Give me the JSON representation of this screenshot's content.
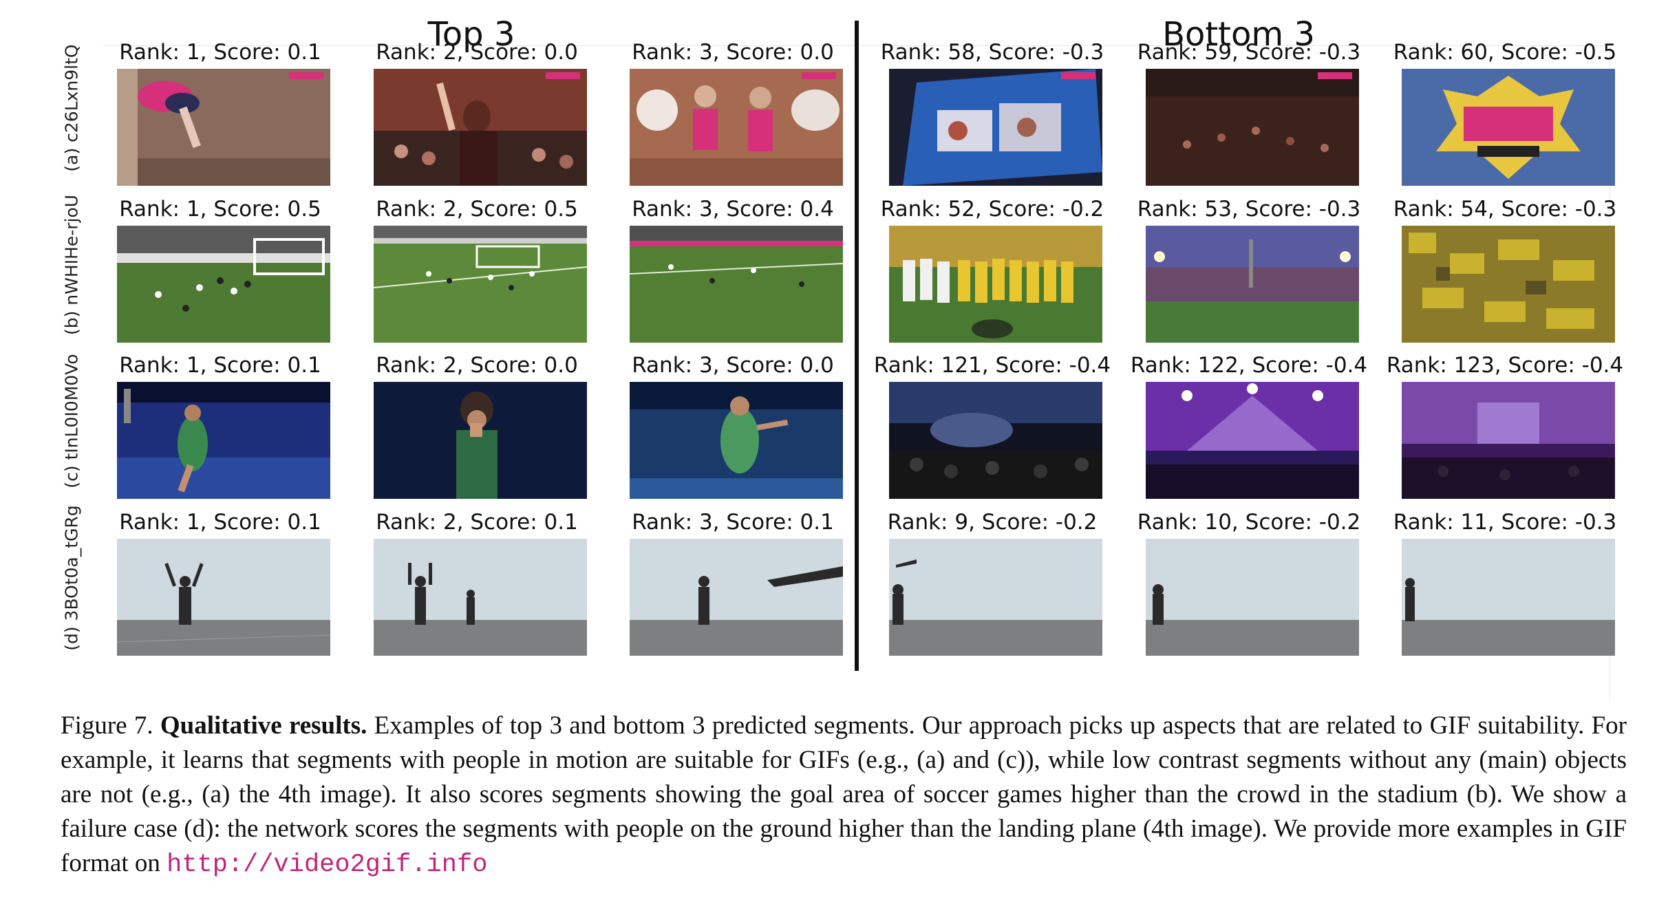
{
  "headers": {
    "top": "Top 3",
    "bottom": "Bottom 3"
  },
  "rows": [
    {
      "label": "(a) c26Lxn9ltQ",
      "cells": [
        {
          "caption": "Rank: 1, Score: 0.1",
          "scene": "gymnast"
        },
        {
          "caption": "Rank: 2, Score: 0.0",
          "scene": "cheer-crowd"
        },
        {
          "caption": "Rank: 3, Score: 0.0",
          "scene": "cheer-girls"
        },
        {
          "caption": "Rank: 58, Score: -0.3",
          "scene": "screen"
        },
        {
          "caption": "Rank: 59, Score: -0.3",
          "scene": "dark-crowd"
        },
        {
          "caption": "Rank: 60, Score: -0.5",
          "scene": "awards-logo"
        }
      ]
    },
    {
      "label": "(b) nWHIHe-rjoU",
      "cells": [
        {
          "caption": "Rank: 1, Score: 0.5",
          "scene": "soccer-goal"
        },
        {
          "caption": "Rank: 2, Score: 0.5",
          "scene": "soccer-field"
        },
        {
          "caption": "Rank: 3, Score: 0.4",
          "scene": "soccer-wide"
        },
        {
          "caption": "Rank: 52, Score: -0.2",
          "scene": "team-lineup"
        },
        {
          "caption": "Rank: 53, Score: -0.3",
          "scene": "stadium-dusk"
        },
        {
          "caption": "Rank: 54, Score: -0.3",
          "scene": "yellow-crowd"
        }
      ]
    },
    {
      "label": "(c) tInL0I0M0Vo",
      "cells": [
        {
          "caption": "Rank: 1, Score: 0.1",
          "scene": "singer-blue"
        },
        {
          "caption": "Rank: 2, Score: 0.0",
          "scene": "singer-dark"
        },
        {
          "caption": "Rank: 3, Score: 0.0",
          "scene": "singer-stage"
        },
        {
          "caption": "Rank: 121, Score: -0.4",
          "scene": "concert-crowd"
        },
        {
          "caption": "Rank: 122, Score: -0.4",
          "scene": "concert-purple"
        },
        {
          "caption": "Rank: 123, Score: -0.4",
          "scene": "concert-wide"
        }
      ]
    },
    {
      "label": "(d) 3BOt0a_tGRg",
      "cells": [
        {
          "caption": "Rank: 1, Score: 0.1",
          "scene": "deck-arms"
        },
        {
          "caption": "Rank: 2, Score: 0.1",
          "scene": "deck-two"
        },
        {
          "caption": "Rank: 3, Score: 0.1",
          "scene": "deck-wing"
        },
        {
          "caption": "Rank: 9, Score: -0.2",
          "scene": "deck-plane"
        },
        {
          "caption": "Rank: 10, Score: -0.2",
          "scene": "deck-one"
        },
        {
          "caption": "Rank: 11, Score: -0.3",
          "scene": "deck-edge"
        }
      ]
    }
  ],
  "caption": {
    "prefix": "Figure 7. ",
    "bold": "Qualitative results.",
    "body": " Examples of top 3 and bottom 3 predicted segments. Our approach picks up aspects that are related to GIF suitability. For example, it learns that segments with people in motion are suitable for GIFs (e.g., (a) and (c)), while low contrast segments without any (main) objects are not (e.g., (a) the 4th image). It also scores segments showing the goal area of soccer games higher than the crowd in the stadium (b). We show a failure case (d): the network scores the segments with people on the ground higher than the landing plane (4th image). We provide more examples in GIF format on ",
    "url": "http://video2gif.info"
  },
  "scene_colors": {
    "gym-bg": "#8a6a5c",
    "pink": "#d6307a",
    "stadium-green": "#4f7a33",
    "night-blue": "#1d2f7a",
    "purple-stage": "#6b2fa8",
    "sky": "#cfd9e0",
    "deck": "#7d7f80"
  }
}
